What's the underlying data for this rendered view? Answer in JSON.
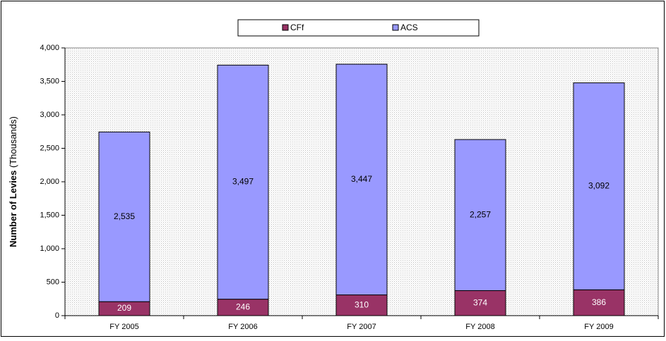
{
  "chart_data": {
    "type": "stacked-bar",
    "ylabel": [
      "Number of Levies",
      "(Thousands)"
    ],
    "categories": [
      "FY 2005",
      "FY 2006",
      "FY 2007",
      "FY 2008",
      "FY 2009"
    ],
    "series": [
      {
        "name": "CFf",
        "color": "#993366",
        "values": [
          209,
          246,
          310,
          374,
          386
        ],
        "value_labels": [
          "209",
          "246",
          "310",
          "374",
          "386"
        ]
      },
      {
        "name": "ACS",
        "color": "#9999ff",
        "values": [
          2535,
          3497,
          3447,
          2257,
          3092
        ],
        "value_labels": [
          "2,535",
          "3,497",
          "3,447",
          "2,257",
          "3,092"
        ]
      }
    ],
    "ylim": [
      0,
      4000
    ],
    "yticks": [
      0,
      500,
      {
        "value": 1000,
        "label": "1,000"
      },
      {
        "value": 1500,
        "label": "1,500"
      },
      {
        "value": 2000,
        "label": "2,000"
      },
      {
        "value": 2500,
        "label": "2,500"
      },
      {
        "value": 3000,
        "label": "3,000"
      },
      {
        "value": 3500,
        "label": "3,500"
      },
      {
        "value": 4000,
        "label": "4,000"
      }
    ],
    "legend": "top"
  }
}
